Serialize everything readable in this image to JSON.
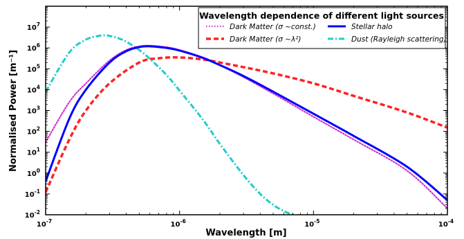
{
  "chart_data": {
    "type": "line",
    "xlabel": "Wavelength [m]",
    "ylabel": "Normalised Power [m⁻¹]",
    "x_scale": "log",
    "y_scale": "log",
    "xlim": [
      1e-07,
      0.0001
    ],
    "ylim": [
      0.01,
      100000000.0
    ],
    "x_ticks": [
      {
        "value": 1e-07,
        "mantissa": "10",
        "exp": "-7"
      },
      {
        "value": 1e-06,
        "mantissa": "10",
        "exp": "-6"
      },
      {
        "value": 1e-05,
        "mantissa": "10",
        "exp": "-5"
      },
      {
        "value": 0.0001,
        "mantissa": "10",
        "exp": "-4"
      }
    ],
    "y_ticks": [
      {
        "value": 0.01,
        "mantissa": "10",
        "exp": "-2"
      },
      {
        "value": 0.1,
        "mantissa": "10",
        "exp": "-1"
      },
      {
        "value": 1,
        "mantissa": "10",
        "exp": "0"
      },
      {
        "value": 10,
        "mantissa": "10",
        "exp": "1"
      },
      {
        "value": 100,
        "mantissa": "10",
        "exp": "2"
      },
      {
        "value": 1000,
        "mantissa": "10",
        "exp": "3"
      },
      {
        "value": 10000,
        "mantissa": "10",
        "exp": "4"
      },
      {
        "value": 100000,
        "mantissa": "10",
        "exp": "5"
      },
      {
        "value": 1000000,
        "mantissa": "10",
        "exp": "6"
      },
      {
        "value": 10000000,
        "mantissa": "10",
        "exp": "7"
      }
    ],
    "legend": {
      "title": "Wavelength dependence of different light sources",
      "placement": "top-right"
    },
    "series": [
      {
        "name": "Dark Matter (σ ~const.)",
        "color": "#cc33cc",
        "style": "dotted",
        "x": [
          1e-07,
          1.5e-07,
          2e-07,
          3e-07,
          4e-07,
          5e-07,
          6e-07,
          8e-07,
          1e-06,
          1.5e-06,
          2e-06,
          3e-06,
          5e-06,
          1e-05,
          2e-05,
          5e-05,
          0.0001
        ],
        "y": [
          30,
          2500,
          20000,
          250000,
          800000,
          1200000,
          1300000,
          1100000,
          800000,
          350000,
          150000,
          40000,
          6500,
          500,
          40,
          1.3,
          0.02
        ]
      },
      {
        "name": "Dark Matter (σ ~λ²)",
        "color": "#ff2222",
        "style": "dashed",
        "x": [
          1e-07,
          1.5e-07,
          2e-07,
          3e-07,
          5e-07,
          7e-07,
          1e-06,
          1.5e-06,
          2e-06,
          3e-06,
          5e-06,
          1e-05,
          2e-05,
          5e-05,
          0.0001
        ],
        "y": [
          0.12,
          40,
          1000,
          20000,
          200000,
          320000,
          350000,
          280000,
          200000,
          120000,
          60000,
          20000,
          5000,
          800,
          150
        ]
      },
      {
        "name": "Stellar halo",
        "color": "#0000ff",
        "style": "solid",
        "x": [
          1e-07,
          1.5e-07,
          2e-07,
          3e-07,
          4e-07,
          5e-07,
          6e-07,
          8e-07,
          1e-06,
          1.5e-06,
          2e-06,
          3e-06,
          5e-06,
          1e-05,
          2e-05,
          5e-05,
          0.0001
        ],
        "y": [
          0.4,
          400,
          10000,
          200000,
          700000,
          1100000,
          1200000,
          1000000,
          750000,
          330000,
          150000,
          45000,
          8000,
          700,
          60,
          2,
          0.05
        ]
      },
      {
        "name": "Dust (Rayleigh scattering)",
        "color": "#22cccc",
        "style": "dashdot",
        "x": [
          1e-07,
          1.5e-07,
          2e-07,
          2.5e-07,
          2.8e-07,
          3e-07,
          3.5e-07,
          4e-07,
          5e-07,
          6e-07,
          8e-07,
          1e-06,
          1.5e-06,
          2e-06,
          3e-06,
          4e-06,
          5e-06,
          6e-06,
          7e-06
        ],
        "y": [
          8000,
          600000,
          2500000,
          3800000,
          4000000,
          3800000,
          2900000,
          2000000,
          800000,
          300000,
          50000,
          9000,
          350,
          25,
          0.8,
          0.1,
          0.03,
          0.015,
          0.01
        ]
      }
    ]
  }
}
